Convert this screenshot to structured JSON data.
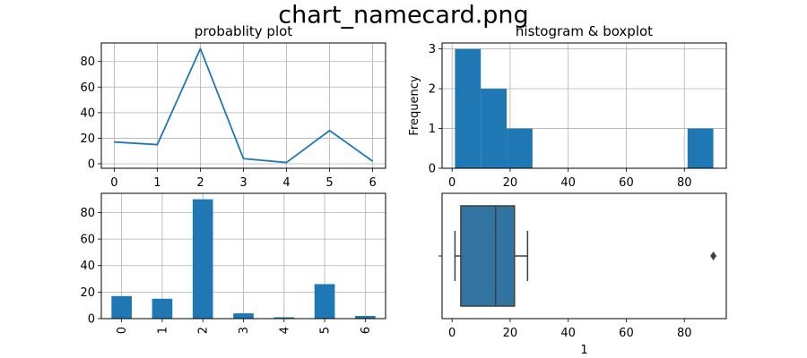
{
  "figure": {
    "title": "chart_namecard.png"
  },
  "colors": {
    "primary": "#1f77b4",
    "box_fill": "#3274a1",
    "box_edge": "#3f3f3f"
  },
  "chart_data": [
    {
      "type": "line",
      "title": "probablity plot",
      "x": [
        0,
        1,
        2,
        3,
        4,
        5,
        6
      ],
      "y": [
        17,
        15,
        90,
        4,
        1,
        26,
        2
      ],
      "xticks": [
        0,
        1,
        2,
        3,
        4,
        5,
        6
      ],
      "yticks": [
        0,
        20,
        40,
        60,
        80
      ],
      "xlim": [
        -0.3,
        6.3
      ],
      "ylim": [
        -3.5,
        94.5
      ],
      "grid": true
    },
    {
      "type": "bar",
      "title": "histogram",
      "ylabel": "Frequency",
      "bins": [
        {
          "x0": 1,
          "x1": 9.9,
          "count": 3
        },
        {
          "x0": 9.9,
          "x1": 18.8,
          "count": 2
        },
        {
          "x0": 18.8,
          "x1": 27.7,
          "count": 1
        },
        {
          "x0": 27.7,
          "x1": 36.6,
          "count": 0
        },
        {
          "x0": 36.6,
          "x1": 45.5,
          "count": 0
        },
        {
          "x0": 45.5,
          "x1": 54.4,
          "count": 0
        },
        {
          "x0": 54.4,
          "x1": 63.3,
          "count": 0
        },
        {
          "x0": 63.3,
          "x1": 72.2,
          "count": 0
        },
        {
          "x0": 72.2,
          "x1": 81.1,
          "count": 0
        },
        {
          "x0": 81.1,
          "x1": 90,
          "count": 1
        }
      ],
      "xticks": [
        0,
        20,
        40,
        60,
        80
      ],
      "yticks": [
        0,
        1,
        2,
        3
      ],
      "xlim": [
        -3.45,
        94.45
      ],
      "ylim": [
        0,
        3.15
      ],
      "grid": true,
      "title_shared": "histogram & boxplot"
    },
    {
      "type": "bar",
      "categories": [
        "0",
        "1",
        "2",
        "3",
        "4",
        "5",
        "6"
      ],
      "values": [
        17,
        15,
        90,
        4,
        1,
        26,
        2
      ],
      "yticks": [
        0,
        20,
        40,
        60,
        80
      ],
      "ylim": [
        0,
        94.5
      ],
      "grid": true
    },
    {
      "type": "boxplot",
      "xlabel": "1",
      "ytick_label": "",
      "stats": {
        "whisker_low": 1,
        "q1": 3,
        "median": 15,
        "q3": 21.5,
        "whisker_high": 26,
        "outliers": [
          90
        ]
      },
      "xticks": [
        0,
        20,
        40,
        60,
        80
      ],
      "xlim": [
        -3.45,
        94.45
      ]
    }
  ]
}
